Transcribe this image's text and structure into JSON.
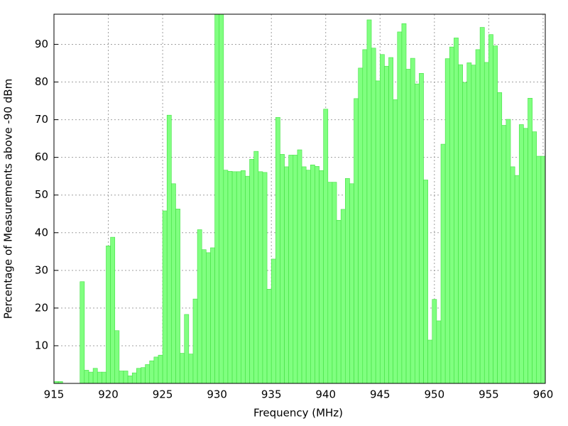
{
  "chart_data": {
    "type": "histogram",
    "xlabel": "Frequency (MHz)",
    "ylabel": "Percentage of Measurements above -90 dBm",
    "color": "#80ff80",
    "edge_color": "#40e040",
    "grid": true,
    "xlim": [
      915,
      960.2
    ],
    "ylim": [
      0,
      98
    ],
    "xticks": [
      915,
      920,
      925,
      930,
      935,
      940,
      945,
      950,
      955,
      960
    ],
    "yticks": [
      10,
      20,
      30,
      40,
      50,
      60,
      70,
      80,
      90
    ],
    "bins": [
      915.0,
      915.4,
      915.8,
      916.2,
      916.6,
      917.0,
      917.4,
      917.8,
      918.2,
      918.6,
      919.0,
      919.4,
      919.8,
      920.2,
      920.6,
      921.0,
      921.4,
      921.8,
      922.2,
      922.6,
      923.0,
      923.4,
      923.8,
      924.2,
      924.6,
      925.0,
      925.4,
      925.8,
      926.2,
      926.6,
      927.0,
      927.4,
      927.8,
      928.2,
      928.6,
      929.0,
      929.4,
      929.8,
      930.2,
      930.6,
      931.0,
      931.4,
      931.8,
      932.2,
      932.6,
      933.0,
      933.4,
      933.8,
      934.2,
      934.6,
      935.0,
      935.4,
      935.8,
      936.2,
      936.6,
      937.0,
      937.4,
      937.8,
      938.2,
      938.6,
      939.0,
      939.4,
      939.8,
      940.2,
      940.6,
      941.0,
      941.4,
      941.8,
      942.2,
      942.6,
      943.0,
      943.4,
      943.8,
      944.2,
      944.6,
      945.0,
      945.4,
      945.8,
      946.2,
      946.6,
      947.0,
      947.4,
      947.8,
      948.2,
      948.6,
      949.0,
      949.4,
      949.8,
      950.2,
      950.6,
      951.0,
      951.4,
      951.8,
      952.2,
      952.6,
      953.0,
      953.4,
      953.8,
      954.2,
      954.6,
      955.0,
      955.4,
      955.8,
      956.2,
      956.6,
      957.0,
      957.4,
      957.8,
      958.2,
      958.6,
      959.0,
      959.4,
      959.8,
      960.2
    ],
    "counts": [
      0.5,
      0.5,
      0,
      0,
      0,
      0,
      27,
      3.5,
      3,
      4,
      3,
      3,
      36.5,
      38.8,
      14,
      3.3,
      3.3,
      2,
      2.8,
      4,
      4.2,
      5,
      6,
      7,
      7.5,
      45.8,
      71.2,
      53,
      46.3,
      8,
      18.3,
      7.8,
      22.4,
      40.8,
      35.5,
      34.7,
      36,
      98,
      98,
      56.6,
      56.3,
      56.2,
      56.2,
      56.5,
      55,
      59.5,
      61.6,
      56.2,
      56,
      25,
      33,
      70.6,
      60.8,
      57.5,
      60.6,
      60.6,
      62,
      57.5,
      56.6,
      58,
      57.6,
      56.5,
      72.8,
      53.4,
      53.4,
      43.3,
      46.2,
      54.4,
      53,
      75.6,
      83.7,
      88.6,
      96.5,
      89,
      80.3,
      87.3,
      84.2,
      86.5,
      75.3,
      93.3,
      95.5,
      83.4,
      86.3,
      79.5,
      82.3,
      54,
      11.5,
      22.3,
      16.6,
      63.5,
      86.2,
      89.3,
      91.7,
      84.6,
      79.9,
      85.1,
      84.5,
      88.6,
      94.5,
      85.2,
      92.6,
      89.6,
      77.2,
      68.5,
      70.1,
      57.5,
      55.2,
      68.7,
      67.7,
      75.7,
      66.8,
      60.3,
      60.3
    ]
  }
}
